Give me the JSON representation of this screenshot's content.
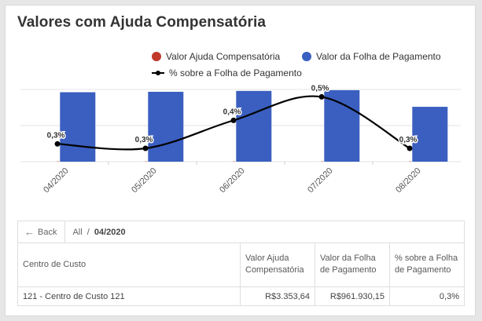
{
  "title": "Valores com Ajuda Compensatória",
  "legend": {
    "ajuda": "Valor Ajuda Compensatória",
    "folha": "Valor da Folha de Pagamento",
    "percent": "% sobre a Folha de Pagamento"
  },
  "colors": {
    "ajuda": "#c0392b",
    "folha": "#3a5fc0",
    "line": "#000000"
  },
  "chart_data": {
    "type": "bar",
    "categories": [
      "04/2020",
      "05/2020",
      "06/2020",
      "07/2020",
      "08/2020"
    ],
    "series": [
      {
        "name": "Valor Ajuda Compensatória",
        "values": [
          3353.64,
          3353.64,
          3353.64,
          3353.64,
          3353.64
        ]
      },
      {
        "name": "Valor da Folha de Pagamento",
        "values": [
          961930.15,
          968000,
          980000,
          990000,
          760000
        ]
      },
      {
        "name": "% sobre a Folha de Pagamento",
        "type": "line",
        "values": [
          0.3,
          0.3,
          0.4,
          0.5,
          0.3
        ],
        "labels": [
          "0,3%",
          "0,3%",
          "0,4%",
          "0,5%",
          "0,3%"
        ]
      }
    ],
    "percent_line_levels": [
      0.28,
      0.21,
      0.65,
      1.02,
      0.21
    ],
    "ylim": [
      0,
      1000000
    ],
    "grid": true,
    "legend_position": "top-right"
  },
  "breadcrumb": {
    "back": "Back",
    "all": "All",
    "separator": "/",
    "current": "04/2020"
  },
  "table": {
    "headers": [
      "Centro de Custo",
      "Valor Ajuda Compensatória",
      "Valor da Folha de Pagamento",
      "% sobre a Folha de Pagamento"
    ],
    "rows": [
      [
        "121 - Centro de Custo 121",
        "R$3.353,64",
        "R$961.930,15",
        "0,3%"
      ]
    ]
  }
}
